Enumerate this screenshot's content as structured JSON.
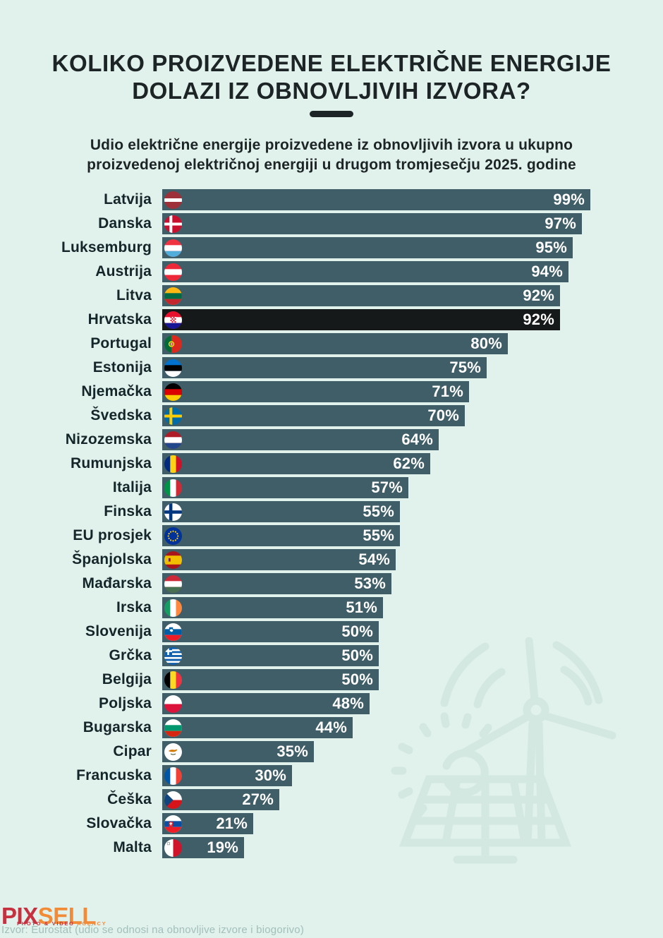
{
  "page": {
    "background": "#e1f1ec"
  },
  "header": {
    "title_line1": "KOLIKO PROIZVEDENE ELEKTRIČNE ENERGIJE",
    "title_line2": "DOLAZI IZ OBNOVLJIVIH IZVORA?",
    "subtitle_line1": "Udio električne energije proizvedene iz obnovljivih izvora u ukupno",
    "subtitle_line2": "proizvedenoj električnoj energiji u drugom tromjesečju 2025. godine"
  },
  "chart_data": {
    "type": "bar",
    "orientation": "horizontal",
    "unit": "%",
    "xlim": [
      0,
      100
    ],
    "grid": false,
    "legend": false,
    "highlight_category": "Hrvatska",
    "bar_color": "#3f5e68",
    "highlight_color": "#16191a",
    "value_label_color": "#ffffff",
    "categories": [
      "Latvija",
      "Danska",
      "Luksemburg",
      "Austrija",
      "Litva",
      "Hrvatska",
      "Portugal",
      "Estonija",
      "Njemačka",
      "Švedska",
      "Nizozemska",
      "Rumunjska",
      "Italija",
      "Finska",
      "EU prosjek",
      "Španjolska",
      "Mađarska",
      "Irska",
      "Slovenija",
      "Grčka",
      "Belgija",
      "Poljska",
      "Bugarska",
      "Cipar",
      "Francuska",
      "Češka",
      "Slovačka",
      "Malta"
    ],
    "values": [
      99,
      97,
      95,
      94,
      92,
      92,
      80,
      75,
      71,
      70,
      64,
      62,
      57,
      55,
      55,
      54,
      53,
      51,
      50,
      50,
      50,
      48,
      44,
      35,
      30,
      27,
      21,
      19
    ],
    "flag_icons": [
      "lv",
      "dk",
      "lu",
      "at",
      "lt",
      "hr",
      "pt",
      "ee",
      "de",
      "se",
      "nl",
      "ro",
      "it",
      "fi",
      "eu",
      "es",
      "hu",
      "ie",
      "si",
      "gr",
      "be",
      "pl",
      "bg",
      "cy",
      "fr",
      "cz",
      "sk",
      "mt"
    ]
  },
  "watermark": {
    "icon": "wind-turbine-sun-solar-panel-icon",
    "color": "#d3e8e1"
  },
  "footer": {
    "logo": {
      "part1": "PIX",
      "part2": "SELL",
      "tagline_part1": "PHOTO & VIDEO",
      "tagline_part2": "AGENCY",
      "color1": "#c5313f",
      "color2": "#f28b38"
    },
    "source": "Izvor: Eurostat (udio se odnosi na obnovljive izvore i biogorivo)"
  }
}
